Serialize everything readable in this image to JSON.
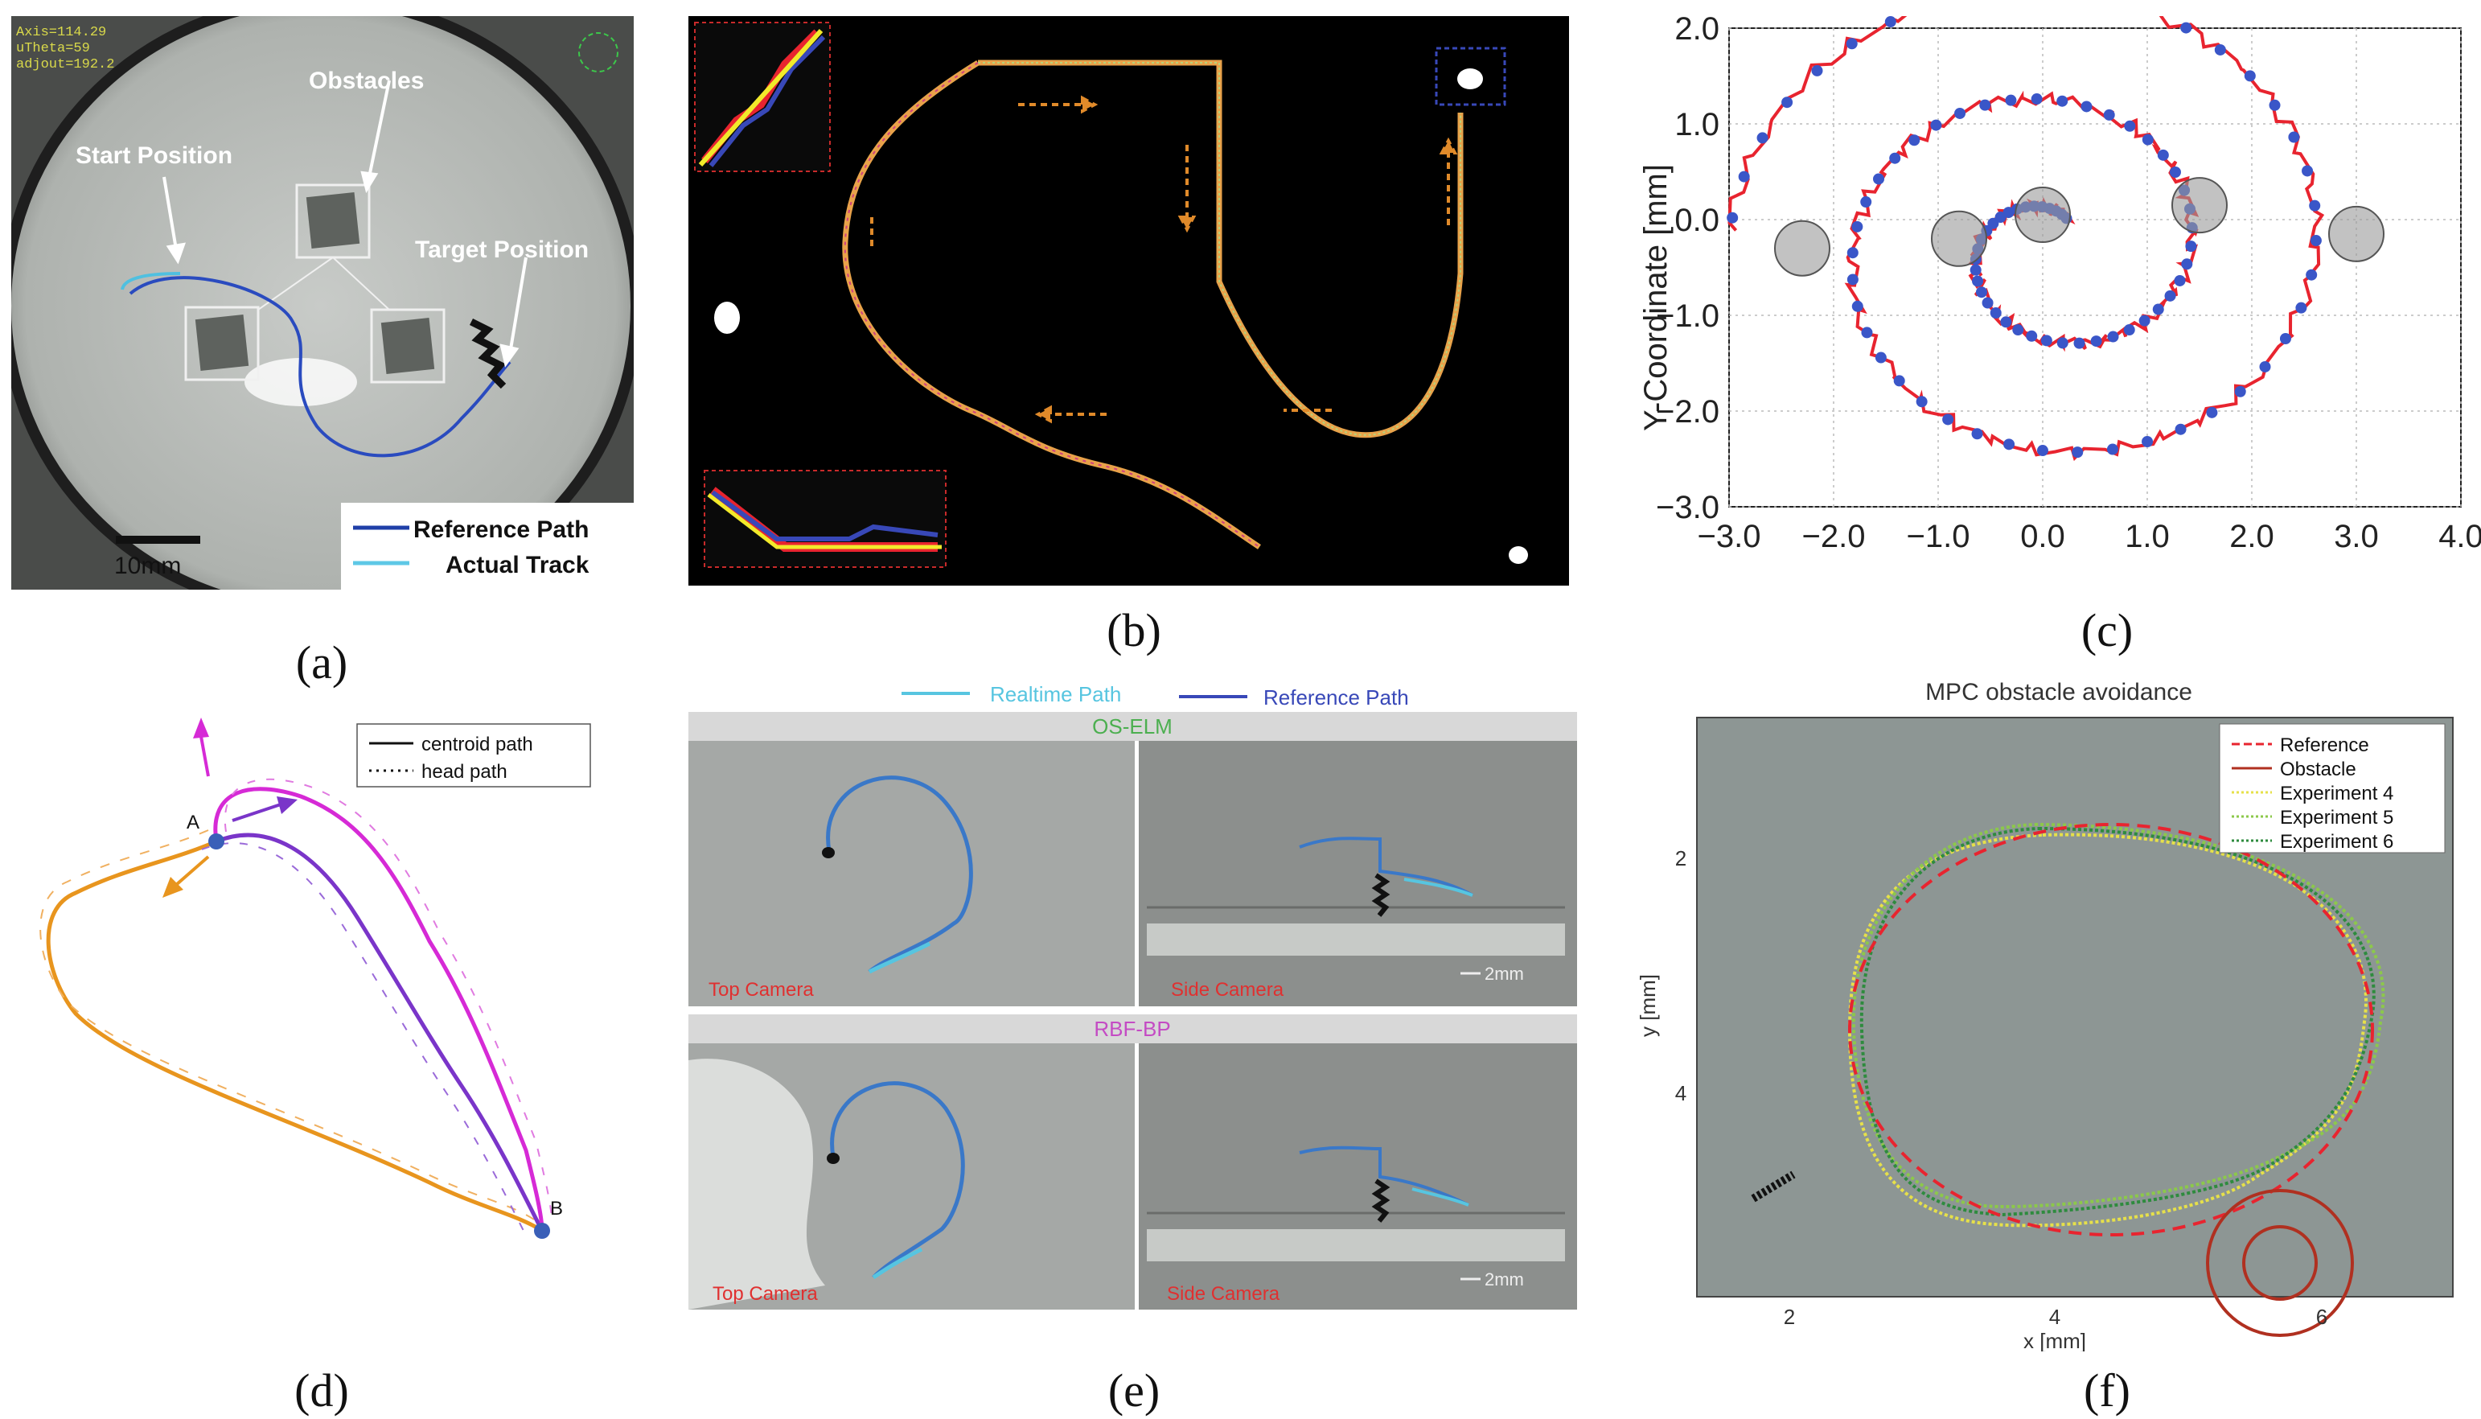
{
  "captions": [
    "(a)",
    "(b)",
    "(c)",
    "(d)",
    "(e)",
    "(f)"
  ],
  "panel_a": {
    "hud": [
      "Axis=114.29",
      "uTheta=59",
      "adjout=192.2"
    ],
    "labels": {
      "obstacles": "Obstacles",
      "start": "Start Position",
      "target": "Target Position"
    },
    "scalebar": "10mm",
    "legend": [
      {
        "label": "Reference Path",
        "color": "#1f3fa8"
      },
      {
        "label": "Actual Track",
        "color": "#5ec8e6"
      }
    ]
  },
  "panel_c": {
    "ylabel": "Y-Coordinate [mm]",
    "yticks": [
      "2.0",
      "1.0",
      "0.0",
      "−1.0",
      "−2.0",
      "−3.0"
    ],
    "xticks": [
      "−3.0",
      "−2.0",
      "−1.0",
      "0.0",
      "1.0",
      "2.0",
      "3.0",
      "4.0"
    ],
    "colors": {
      "dots": "#3a56c8",
      "line": "#e8242f",
      "obstacle": "#9a9a9a"
    }
  },
  "chart_data": {
    "type": "scatter",
    "title": "",
    "xlabel": "",
    "ylabel": "Y-Coordinate [mm]",
    "xlim": [
      -3.0,
      4.0
    ],
    "ylim": [
      -3.0,
      2.0
    ],
    "grid": true,
    "obstacles": [
      {
        "x": -2.3,
        "y": -0.3
      },
      {
        "x": -0.8,
        "y": -0.2
      },
      {
        "x": 0.0,
        "y": 0.05
      },
      {
        "x": 1.5,
        "y": 0.15
      },
      {
        "x": 3.0,
        "y": -0.15
      }
    ]
  },
  "panel_d": {
    "legend": [
      {
        "label": "centroid path",
        "style": "solid"
      },
      {
        "label": "head path",
        "style": "dotted"
      }
    ],
    "point_a": "A",
    "point_b": "B",
    "colors": {
      "orange": "#e8951e",
      "magenta": "#d62ad6",
      "purple": "#7a35c9"
    }
  },
  "panel_e": {
    "legend": [
      {
        "label": "Realtime Path",
        "color": "#57c5e0"
      },
      {
        "label": "Reference Path",
        "color": "#3848b8"
      }
    ],
    "row_titles": [
      "OS-ELM",
      "RBF-BP"
    ],
    "row_title_colors": [
      "#4caf50",
      "#c44bc4"
    ],
    "cam_top": "Top Camera",
    "cam_side": "Side Camera",
    "scale": "2mm"
  },
  "panel_f": {
    "title": "MPC obstacle avoidance",
    "xlabel": "x [mm]",
    "ylabel": "y [mm]",
    "xticks": [
      "2",
      "4",
      "6"
    ],
    "yticks": [
      "2",
      "4"
    ],
    "legend": [
      {
        "label": "Reference",
        "color": "#e8242f",
        "style": "dashed"
      },
      {
        "label": "Obstacle",
        "color": "#b03020",
        "style": "solid"
      },
      {
        "label": "Experiment 4",
        "color": "#e6e04a",
        "style": "dotted"
      },
      {
        "label": "Experiment 5",
        "color": "#8cc84b",
        "style": "dotted"
      },
      {
        "label": "Experiment 6",
        "color": "#2e8b3e",
        "style": "dotted"
      }
    ]
  }
}
